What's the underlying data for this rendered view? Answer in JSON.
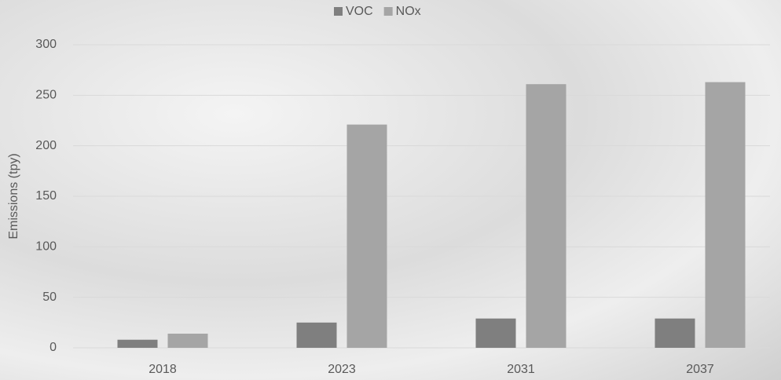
{
  "chart_data": {
    "type": "bar",
    "y_label": "Emissions (tpy)",
    "categories": [
      "2018",
      "2023",
      "2031",
      "2037"
    ],
    "series": [
      {
        "name": "VOC",
        "color": "#7f7f7f",
        "values": [
          8,
          25,
          29,
          29
        ]
      },
      {
        "name": "NOx",
        "color": "#a5a5a5",
        "values": [
          14,
          221,
          261,
          263
        ]
      }
    ],
    "ylim": [
      0,
      300
    ],
    "yticks": [
      0,
      50,
      100,
      150,
      200,
      250,
      300
    ],
    "grid": true,
    "legend": "top"
  }
}
